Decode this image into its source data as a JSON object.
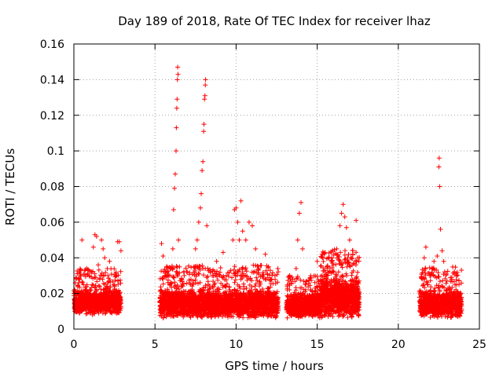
{
  "chart_data": {
    "type": "scatter",
    "title": "Day 189 of 2018, Rate Of TEC Index for receiver lhaz",
    "xlabel": "GPS time / hours",
    "ylabel": "ROTI / TECUs",
    "xlim": [
      0,
      25
    ],
    "ylim": [
      0,
      0.16
    ],
    "xticks": [
      0,
      5,
      10,
      15,
      20,
      25
    ],
    "yticks": [
      0,
      0.02,
      0.04,
      0.06,
      0.08,
      0.1,
      0.12,
      0.14,
      0.16
    ],
    "xtick_labels": [
      "0",
      "5",
      "10",
      "15",
      "20",
      "25"
    ],
    "ytick_labels": [
      "0",
      "0.02",
      "0.04",
      "0.06",
      "0.08",
      "0.1",
      "0.12",
      "0.14",
      "0.16"
    ],
    "grid": true,
    "marker": "+",
    "color": "#ff0000",
    "series": [
      {
        "name": "ROTI",
        "points": [
          [
            0.0,
            0.02
          ],
          [
            0.1,
            0.012
          ],
          [
            0.2,
            0.016
          ],
          [
            0.3,
            0.026
          ],
          [
            0.4,
            0.03
          ],
          [
            0.5,
            0.05
          ],
          [
            0.6,
            0.018
          ],
          [
            0.7,
            0.022
          ],
          [
            0.8,
            0.034
          ],
          [
            0.9,
            0.014
          ],
          [
            1.0,
            0.02
          ],
          [
            1.1,
            0.032
          ],
          [
            1.2,
            0.046
          ],
          [
            1.3,
            0.053
          ],
          [
            1.4,
            0.052
          ],
          [
            1.5,
            0.036
          ],
          [
            1.6,
            0.028
          ],
          [
            1.7,
            0.05
          ],
          [
            1.8,
            0.045
          ],
          [
            1.9,
            0.04
          ],
          [
            2.0,
            0.024
          ],
          [
            2.1,
            0.03
          ],
          [
            2.2,
            0.038
          ],
          [
            2.3,
            0.02
          ],
          [
            2.4,
            0.016
          ],
          [
            2.5,
            0.022
          ],
          [
            2.6,
            0.03
          ],
          [
            2.7,
            0.049
          ],
          [
            2.8,
            0.049
          ],
          [
            2.9,
            0.044
          ],
          [
            0.05,
            0.01
          ],
          [
            0.35,
            0.009
          ],
          [
            0.75,
            0.011
          ],
          [
            1.15,
            0.008
          ],
          [
            1.55,
            0.012
          ],
          [
            1.95,
            0.01
          ],
          [
            2.35,
            0.009
          ],
          [
            2.75,
            0.012
          ],
          [
            5.4,
            0.048
          ],
          [
            5.5,
            0.041
          ],
          [
            5.6,
            0.02
          ],
          [
            5.8,
            0.03
          ],
          [
            6.0,
            0.034
          ],
          [
            6.1,
            0.045
          ],
          [
            6.15,
            0.067
          ],
          [
            6.2,
            0.079
          ],
          [
            6.25,
            0.087
          ],
          [
            6.3,
            0.1
          ],
          [
            6.32,
            0.113
          ],
          [
            6.34,
            0.124
          ],
          [
            6.36,
            0.129
          ],
          [
            6.38,
            0.14
          ],
          [
            6.4,
            0.147
          ],
          [
            6.42,
            0.143
          ],
          [
            6.45,
            0.05
          ],
          [
            6.6,
            0.024
          ],
          [
            6.8,
            0.03
          ],
          [
            7.0,
            0.02
          ],
          [
            7.2,
            0.025
          ],
          [
            7.4,
            0.035
          ],
          [
            7.5,
            0.045
          ],
          [
            7.6,
            0.05
          ],
          [
            7.7,
            0.06
          ],
          [
            7.8,
            0.068
          ],
          [
            7.85,
            0.076
          ],
          [
            7.9,
            0.089
          ],
          [
            7.95,
            0.094
          ],
          [
            8.0,
            0.111
          ],
          [
            8.02,
            0.115
          ],
          [
            8.05,
            0.129
          ],
          [
            8.08,
            0.131
          ],
          [
            8.1,
            0.137
          ],
          [
            8.12,
            0.14
          ],
          [
            8.2,
            0.058
          ],
          [
            8.4,
            0.032
          ],
          [
            8.6,
            0.03
          ],
          [
            8.8,
            0.038
          ],
          [
            9.0,
            0.03
          ],
          [
            9.2,
            0.043
          ],
          [
            9.4,
            0.03
          ],
          [
            9.6,
            0.022
          ],
          [
            9.8,
            0.05
          ],
          [
            9.9,
            0.067
          ],
          [
            10.0,
            0.068
          ],
          [
            10.1,
            0.06
          ],
          [
            10.2,
            0.05
          ],
          [
            10.3,
            0.072
          ],
          [
            10.4,
            0.055
          ],
          [
            10.6,
            0.05
          ],
          [
            10.8,
            0.06
          ],
          [
            11.0,
            0.058
          ],
          [
            11.2,
            0.045
          ],
          [
            11.4,
            0.034
          ],
          [
            11.6,
            0.03
          ],
          [
            11.8,
            0.042
          ],
          [
            12.0,
            0.035
          ],
          [
            12.2,
            0.028
          ],
          [
            12.4,
            0.03
          ],
          [
            5.5,
            0.01
          ],
          [
            6.5,
            0.009
          ],
          [
            7.5,
            0.012
          ],
          [
            8.5,
            0.01
          ],
          [
            9.5,
            0.009
          ],
          [
            10.5,
            0.012
          ],
          [
            11.5,
            0.01
          ],
          [
            12.5,
            0.011
          ],
          [
            13.3,
            0.03
          ],
          [
            13.5,
            0.028
          ],
          [
            13.7,
            0.034
          ],
          [
            13.8,
            0.05
          ],
          [
            13.9,
            0.065
          ],
          [
            14.0,
            0.071
          ],
          [
            14.1,
            0.045
          ],
          [
            14.3,
            0.025
          ],
          [
            14.6,
            0.022
          ],
          [
            15.0,
            0.038
          ],
          [
            15.3,
            0.03
          ],
          [
            15.6,
            0.035
          ],
          [
            15.9,
            0.04
          ],
          [
            16.0,
            0.036
          ],
          [
            16.2,
            0.045
          ],
          [
            16.4,
            0.058
          ],
          [
            16.5,
            0.065
          ],
          [
            16.6,
            0.07
          ],
          [
            16.7,
            0.063
          ],
          [
            16.8,
            0.057
          ],
          [
            17.0,
            0.05
          ],
          [
            17.2,
            0.042
          ],
          [
            17.4,
            0.061
          ],
          [
            17.5,
            0.04
          ],
          [
            13.5,
            0.01
          ],
          [
            14.5,
            0.009
          ],
          [
            15.5,
            0.011
          ],
          [
            16.5,
            0.012
          ],
          [
            17.3,
            0.01
          ],
          [
            21.5,
            0.028
          ],
          [
            21.6,
            0.04
          ],
          [
            21.7,
            0.046
          ],
          [
            21.8,
            0.025
          ],
          [
            22.0,
            0.03
          ],
          [
            22.2,
            0.038
          ],
          [
            22.4,
            0.041
          ],
          [
            22.5,
            0.091
          ],
          [
            22.52,
            0.096
          ],
          [
            22.55,
            0.08
          ],
          [
            22.6,
            0.056
          ],
          [
            22.7,
            0.044
          ],
          [
            22.8,
            0.038
          ],
          [
            23.0,
            0.027
          ],
          [
            23.3,
            0.029
          ],
          [
            23.6,
            0.025
          ],
          [
            23.8,
            0.02
          ],
          [
            21.5,
            0.01
          ],
          [
            22.5,
            0.009
          ],
          [
            23.5,
            0.011
          ]
        ],
        "bands": [
          {
            "x_start": 0.0,
            "x_end": 2.9,
            "y_min": 0.008,
            "y_mid": 0.017,
            "y_max": 0.034,
            "count": 1000
          },
          {
            "x_start": 5.3,
            "x_end": 12.6,
            "y_min": 0.006,
            "y_mid": 0.016,
            "y_max": 0.036,
            "count": 2600
          },
          {
            "x_start": 13.1,
            "x_end": 15.2,
            "y_min": 0.006,
            "y_mid": 0.015,
            "y_max": 0.03,
            "count": 750
          },
          {
            "x_start": 15.2,
            "x_end": 17.6,
            "y_min": 0.006,
            "y_mid": 0.02,
            "y_max": 0.045,
            "count": 1100
          },
          {
            "x_start": 21.3,
            "x_end": 23.9,
            "y_min": 0.006,
            "y_mid": 0.016,
            "y_max": 0.035,
            "count": 850
          }
        ]
      }
    ]
  }
}
